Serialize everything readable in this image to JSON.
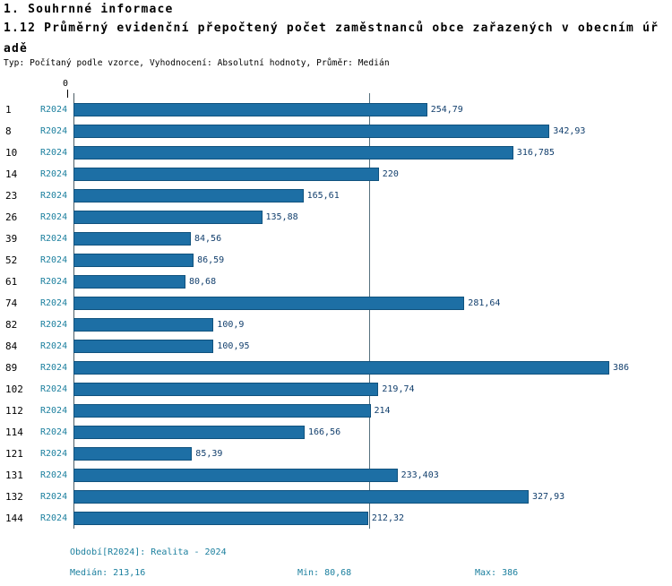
{
  "header": {
    "title": "1. Souhrnné informace",
    "subtitle": "1.12 Průměrný evidenční přepočtený počet zaměstnanců obce zařazených v obecním úřadě",
    "meta": "Typ: Počítaný podle vzorce, Vyhodnocení: Absolutní hodnoty, Průměr: Medián"
  },
  "chart_data": {
    "type": "bar",
    "orientation": "horizontal",
    "title": "1.12 Průměrný evidenční přepočtený počet zaměstnanců obce zařazených v obecním úřadě",
    "categories": [
      "1",
      "8",
      "10",
      "14",
      "23",
      "26",
      "39",
      "52",
      "61",
      "74",
      "82",
      "84",
      "89",
      "102",
      "112",
      "114",
      "121",
      "131",
      "132",
      "144"
    ],
    "series_label": "R2024",
    "values": [
      254.79,
      342.93,
      316.785,
      220,
      165.61,
      135.88,
      84.56,
      86.59,
      80.68,
      281.64,
      100.9,
      100.95,
      386,
      219.74,
      214,
      166.56,
      85.39,
      233.403,
      327.93,
      212.32
    ],
    "value_labels": [
      "254,79",
      "342,93",
      "316,785",
      "220",
      "165,61",
      "135,88",
      "84,56",
      "86,59",
      "80,68",
      "281,64",
      "100,9",
      "100,95",
      "386",
      "219,74",
      "214",
      "166,56",
      "85,39",
      "233,403",
      "327,93",
      "212,32"
    ],
    "axis": {
      "x_origin_label": "0",
      "x_min": 0,
      "x_max": 386
    },
    "median_value": 213.16,
    "median_line": true,
    "grid": false,
    "legend": false
  },
  "footer": {
    "period": "Období[R2024]: Realita - 2024",
    "median": "Medián: 213,16",
    "min": "Min: 80,68",
    "max": "Max: 386"
  },
  "colors": {
    "bar": "#1d6fa5",
    "bar_border": "#10527e",
    "series_label": "#1b7f9e",
    "value_label": "#123f6d",
    "median_line": "#56707e"
  }
}
